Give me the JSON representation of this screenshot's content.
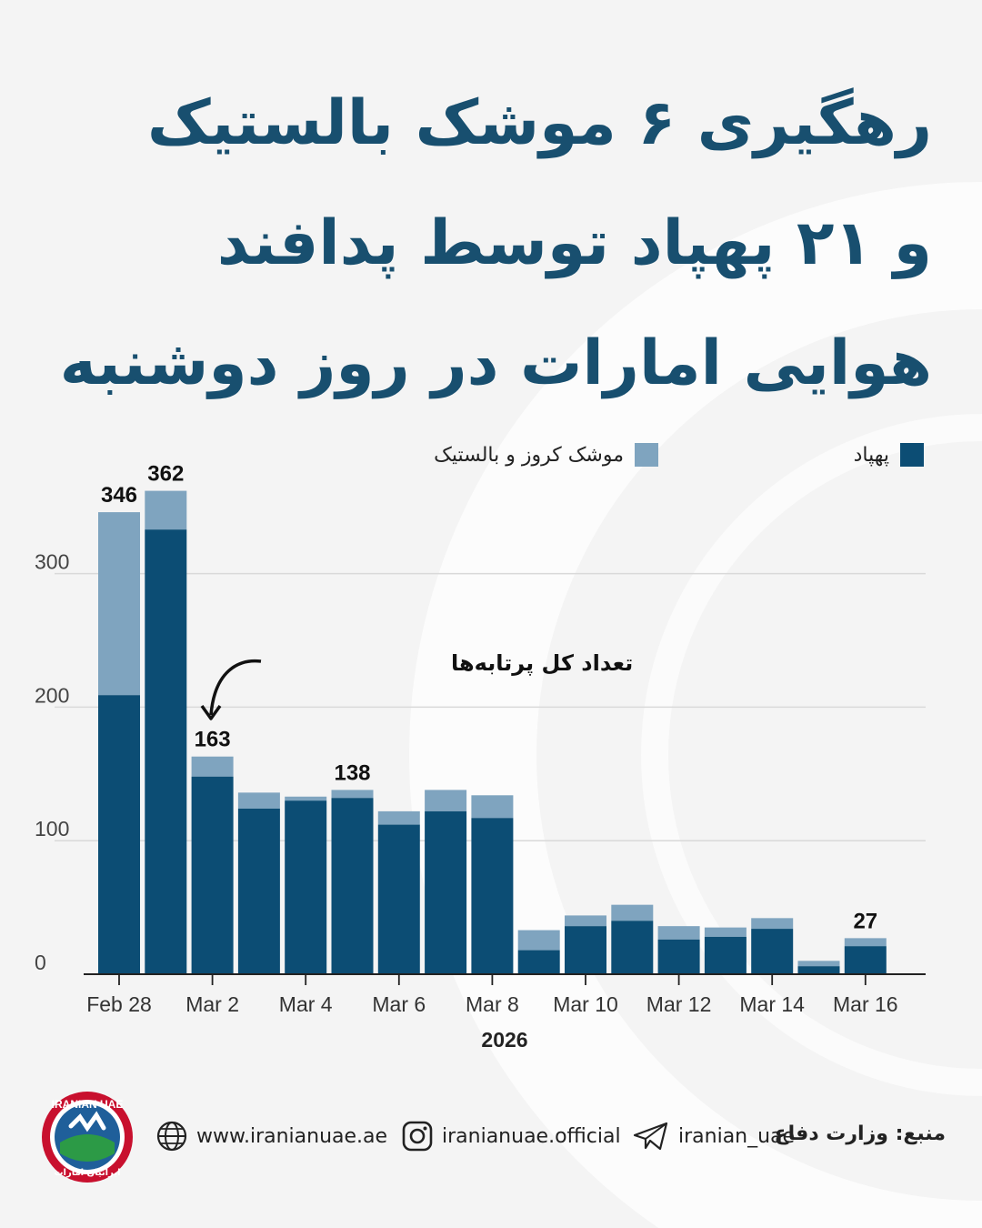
{
  "headline": {
    "line1": "رهگیری ۶ موشک بالستیک",
    "line2": "و ۲۱ پهپاد توسط پدافند",
    "line3": "هوایی امارات در روز دوشنبه"
  },
  "legend": {
    "drones": "پهپاد",
    "missiles": "موشک کروز و بالستیک"
  },
  "annotation": "تعداد کل پرتابه‌ها",
  "colors": {
    "drones": "#0c4d74",
    "missiles": "#7fa4bf",
    "title": "#184f6f",
    "background": "#f4f4f4"
  },
  "chart_data": {
    "type": "bar",
    "stacked": true,
    "categories": [
      "Feb 28",
      "Mar 1",
      "Mar 2",
      "Mar 3",
      "Mar 4",
      "Mar 5",
      "Mar 6",
      "Mar 7",
      "Mar 8",
      "Mar 9",
      "Mar 10",
      "Mar 11",
      "Mar 12",
      "Mar 13",
      "Mar 14",
      "Mar 15",
      "Mar 16"
    ],
    "tick_labels": [
      "Feb 28",
      "Mar 2",
      "Mar 4",
      "Mar 6",
      "Mar 8",
      "Mar 10",
      "Mar 12",
      "Mar 14",
      "Mar 16"
    ],
    "series": [
      {
        "name": "پهپاد",
        "values": [
          209,
          333,
          148,
          124,
          130,
          132,
          112,
          122,
          117,
          18,
          36,
          40,
          26,
          28,
          34,
          6,
          21
        ]
      },
      {
        "name": "موشک کروز و بالستیک",
        "values": [
          137,
          29,
          15,
          12,
          3,
          6,
          10,
          16,
          17,
          15,
          8,
          12,
          10,
          7,
          8,
          4,
          6
        ]
      }
    ],
    "total_labels": [
      {
        "category": "Feb 28",
        "value": "346"
      },
      {
        "category": "Mar 1",
        "value": "362"
      },
      {
        "category": "Mar 2",
        "value": "163"
      },
      {
        "category": "Mar 5",
        "value": "138"
      },
      {
        "category": "Mar 16",
        "value": "27"
      }
    ],
    "xlabel": "2026",
    "ylabel": "",
    "yticks": [
      0,
      100,
      200,
      300
    ],
    "ylim": [
      0,
      370
    ],
    "grid": true,
    "legend_position": "top"
  },
  "footer": {
    "logo_text": "IRANIAN UAE",
    "logo_subtext": "ایرانیان امارات",
    "website": "www.iranianuae.ae",
    "instagram": "iranianuae.official",
    "telegram": "iranian_uae",
    "source": "منبع: وزارت دفاع"
  }
}
